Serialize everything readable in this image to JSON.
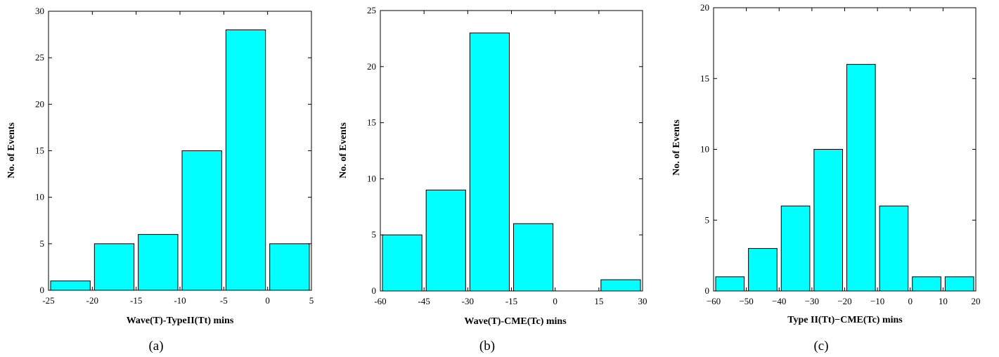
{
  "chart_data": [
    {
      "type": "bar",
      "caption": "(a)",
      "xlabel": "Wave(T)-TypeII(Tt) mins",
      "ylabel": "No. of Events",
      "xlim": [
        -25,
        5
      ],
      "ylim": [
        0,
        30
      ],
      "xticks": [
        -25,
        -20,
        -15,
        -10,
        -5,
        0,
        5
      ],
      "xtick_labels": [
        "-25",
        "-20",
        "-15",
        "-10",
        "-5",
        "0",
        "5"
      ],
      "yticks": [
        0,
        5,
        10,
        15,
        20,
        25,
        30
      ],
      "ytick_labels": [
        "0",
        "5",
        "10",
        "15",
        "20",
        "25",
        "30"
      ],
      "bin_width": 5,
      "bins": [
        {
          "start": -25,
          "end": -20,
          "value": 1
        },
        {
          "start": -20,
          "end": -15,
          "value": 5
        },
        {
          "start": -15,
          "end": -10,
          "value": 6
        },
        {
          "start": -10,
          "end": -5,
          "value": 15
        },
        {
          "start": -5,
          "end": 0,
          "value": 28
        },
        {
          "start": 0,
          "end": 5,
          "value": 5
        }
      ],
      "bar_color": "#00ffff"
    },
    {
      "type": "bar",
      "caption": "(b)",
      "xlabel": "Wave(T)-CME(Tc) mins",
      "ylabel": "No. of Events",
      "xlim": [
        -60,
        30
      ],
      "ylim": [
        0,
        25
      ],
      "xticks": [
        -60,
        -45,
        -30,
        -15,
        0,
        15,
        30
      ],
      "xtick_labels": [
        "-60",
        "-45",
        "-30",
        "-15",
        "0",
        "15",
        "30"
      ],
      "yticks": [
        0,
        5,
        10,
        15,
        20,
        25
      ],
      "ytick_labels": [
        "0",
        "5",
        "10",
        "15",
        "20",
        "25"
      ],
      "bin_width": 15,
      "bins": [
        {
          "start": -60,
          "end": -45,
          "value": 5
        },
        {
          "start": -45,
          "end": -30,
          "value": 9
        },
        {
          "start": -30,
          "end": -15,
          "value": 23
        },
        {
          "start": -15,
          "end": 0,
          "value": 6
        },
        {
          "start": 0,
          "end": 15,
          "value": 0
        },
        {
          "start": 15,
          "end": 30,
          "value": 1
        }
      ],
      "bar_color": "#00ffff"
    },
    {
      "type": "bar",
      "caption": "(c)",
      "xlabel": "Type II(Tt)−CME(Tc) mins",
      "ylabel": "No. of Events",
      "xlim": [
        -60,
        20
      ],
      "ylim": [
        0,
        20
      ],
      "xticks": [
        -60,
        -50,
        -40,
        -30,
        -20,
        -10,
        0,
        10,
        20
      ],
      "xtick_labels": [
        "−60",
        "−50",
        "−40",
        "−30",
        "−20",
        "−10",
        "0",
        "10",
        "20"
      ],
      "yticks": [
        0,
        5,
        10,
        15,
        20
      ],
      "ytick_labels": [
        "0",
        "5",
        "10",
        "15",
        "20"
      ],
      "bin_width": 10,
      "bins": [
        {
          "start": -60,
          "end": -50,
          "value": 1
        },
        {
          "start": -50,
          "end": -40,
          "value": 3
        },
        {
          "start": -40,
          "end": -30,
          "value": 6
        },
        {
          "start": -30,
          "end": -20,
          "value": 10
        },
        {
          "start": -20,
          "end": -10,
          "value": 16
        },
        {
          "start": -10,
          "end": 0,
          "value": 6
        },
        {
          "start": 0,
          "end": 10,
          "value": 1
        },
        {
          "start": 10,
          "end": 20,
          "value": 1
        }
      ],
      "bar_color": "#00ffff"
    }
  ]
}
